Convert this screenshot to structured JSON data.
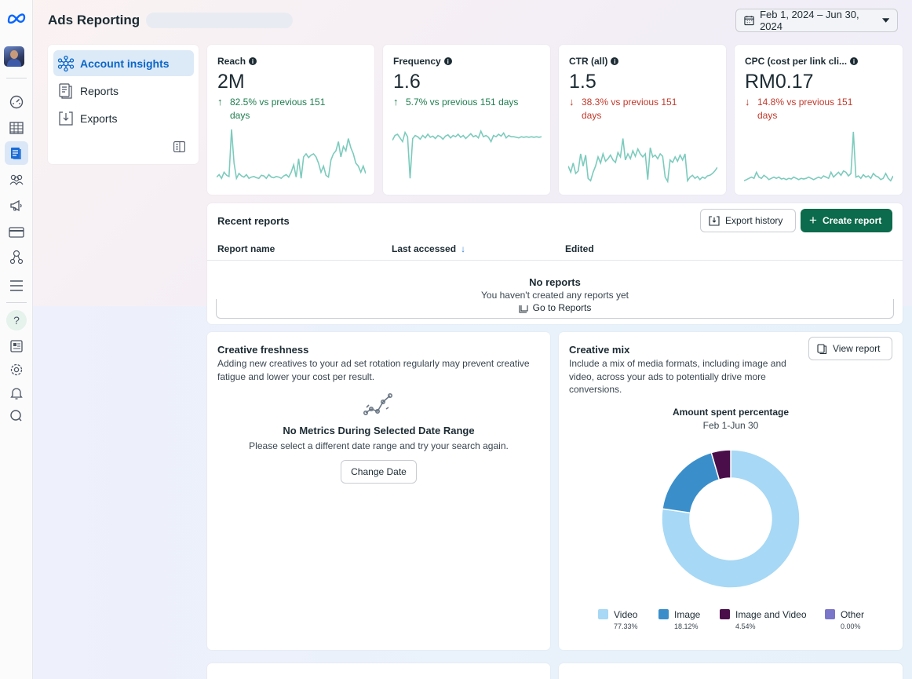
{
  "header": {
    "title": "Ads Reporting",
    "date_range": "Feb 1, 2024 – Jun 30, 2024"
  },
  "nav": {
    "items": [
      {
        "label": "Account insights",
        "icon": "network-icon",
        "active": true
      },
      {
        "label": "Reports",
        "icon": "reports-icon",
        "active": false
      },
      {
        "label": "Exports",
        "icon": "exports-icon",
        "active": false
      }
    ]
  },
  "metrics": [
    {
      "title": "Reach",
      "value": "2M",
      "delta": "82.5% vs previous 151",
      "delta2": "days",
      "direction": "up",
      "spark": [
        0.12,
        0.16,
        0.1,
        0.2,
        0.15,
        0.13,
        0.9,
        0.35,
        0.1,
        0.18,
        0.14,
        0.12,
        0.16,
        0.1,
        0.12,
        0.13,
        0.11,
        0.1,
        0.15,
        0.14,
        0.1,
        0.16,
        0.12,
        0.11,
        0.13,
        0.12,
        0.1,
        0.14,
        0.16,
        0.12,
        0.2,
        0.32,
        0.12,
        0.42,
        0.1,
        0.45,
        0.5,
        0.44,
        0.48,
        0.5,
        0.45,
        0.35,
        0.2,
        0.3,
        0.15,
        0.12,
        0.4,
        0.5,
        0.55,
        0.7,
        0.45,
        0.62,
        0.55,
        0.75,
        0.6,
        0.5,
        0.35,
        0.3,
        0.2,
        0.3,
        0.18
      ]
    },
    {
      "title": "Frequency",
      "value": "1.6",
      "delta": "5.7% vs previous 151 days",
      "delta2": "",
      "direction": "up",
      "spark": [
        0.72,
        0.8,
        0.82,
        0.76,
        0.7,
        0.85,
        0.78,
        0.1,
        0.75,
        0.8,
        0.78,
        0.74,
        0.8,
        0.76,
        0.82,
        0.77,
        0.79,
        0.75,
        0.8,
        0.78,
        0.74,
        0.79,
        0.81,
        0.76,
        0.8,
        0.78,
        0.82,
        0.77,
        0.8,
        0.75,
        0.79,
        0.83,
        0.78,
        0.8,
        0.76,
        0.87,
        0.78,
        0.8,
        0.77,
        0.7,
        0.8,
        0.78,
        0.82,
        0.79,
        0.84,
        0.76,
        0.8,
        0.78,
        0.78,
        0.77,
        0.76,
        0.78,
        0.77,
        0.78,
        0.77,
        0.78,
        0.77,
        0.78,
        0.77,
        0.78
      ]
    },
    {
      "title": "CTR (all)",
      "value": "1.5",
      "delta": "38.3% vs previous 151",
      "delta2": "days",
      "direction": "down",
      "spark": [
        0.3,
        0.2,
        0.35,
        0.18,
        0.22,
        0.5,
        0.3,
        0.48,
        0.1,
        0.06,
        0.2,
        0.3,
        0.45,
        0.35,
        0.5,
        0.38,
        0.42,
        0.48,
        0.4,
        0.36,
        0.52,
        0.45,
        0.75,
        0.4,
        0.5,
        0.42,
        0.55,
        0.46,
        0.58,
        0.5,
        0.45,
        0.5,
        0.08,
        0.6,
        0.45,
        0.48,
        0.42,
        0.5,
        0.46,
        0.12,
        0.05,
        0.4,
        0.36,
        0.45,
        0.38,
        0.48,
        0.4,
        0.5,
        0.06,
        0.12,
        0.15,
        0.1,
        0.13,
        0.08,
        0.12,
        0.1,
        0.14,
        0.15,
        0.18,
        0.22,
        0.28
      ]
    },
    {
      "title": "CPC (cost per link cli...",
      "value": "RM0.17",
      "delta": "14.8% vs previous 151",
      "delta2": "days",
      "direction": "down",
      "spark": [
        0.06,
        0.08,
        0.1,
        0.12,
        0.1,
        0.2,
        0.12,
        0.1,
        0.15,
        0.12,
        0.08,
        0.1,
        0.12,
        0.1,
        0.12,
        0.09,
        0.1,
        0.08,
        0.1,
        0.09,
        0.12,
        0.1,
        0.08,
        0.1,
        0.09,
        0.1,
        0.12,
        0.1,
        0.08,
        0.1,
        0.12,
        0.1,
        0.14,
        0.12,
        0.1,
        0.2,
        0.12,
        0.16,
        0.2,
        0.15,
        0.22,
        0.2,
        0.14,
        0.18,
        0.86,
        0.12,
        0.14,
        0.1,
        0.16,
        0.12,
        0.14,
        0.1,
        0.18,
        0.14,
        0.12,
        0.08,
        0.1,
        0.18,
        0.1,
        0.06,
        0.14
      ]
    }
  ],
  "recent_reports": {
    "title": "Recent reports",
    "export_history": "Export history",
    "create_report": "Create report",
    "columns": [
      "Report name",
      "Last accessed",
      "Edited"
    ],
    "empty_title": "No reports",
    "empty_subtitle": "You haven't created any reports yet",
    "go_to_reports": "Go to Reports"
  },
  "creative_freshness": {
    "title": "Creative freshness",
    "description": "Adding new creatives to your ad set rotation regularly may prevent creative fatigue and lower your cost per result.",
    "empty_title": "No Metrics During Selected Date Range",
    "empty_subtitle": "Please select a different date range and try your search again.",
    "button": "Change Date"
  },
  "creative_mix": {
    "title": "Creative mix",
    "description": "Include a mix of media formats, including image and video, across your ads to potentially drive more conversions.",
    "button": "View report",
    "chart_title": "Amount spent percentage",
    "chart_subtitle": "Feb 1-Jun 30"
  },
  "chart_data": {
    "type": "pie",
    "title": "Amount spent percentage",
    "subtitle": "Feb 1-Jun 30",
    "categories": [
      "Video",
      "Image",
      "Image and Video",
      "Other"
    ],
    "values": [
      77.33,
      18.12,
      4.54,
      0.0
    ],
    "labels": [
      "77.33%",
      "18.12%",
      "4.54%",
      "0.00%"
    ],
    "colors": [
      "#a7d8f5",
      "#3a8fcb",
      "#4a0f4a",
      "#7b76c9"
    ],
    "legend": "bottom"
  },
  "colors": {
    "accent": "#0a66c8",
    "primary_button": "#0c6b4c",
    "sparkline": "#7ccbbd"
  }
}
